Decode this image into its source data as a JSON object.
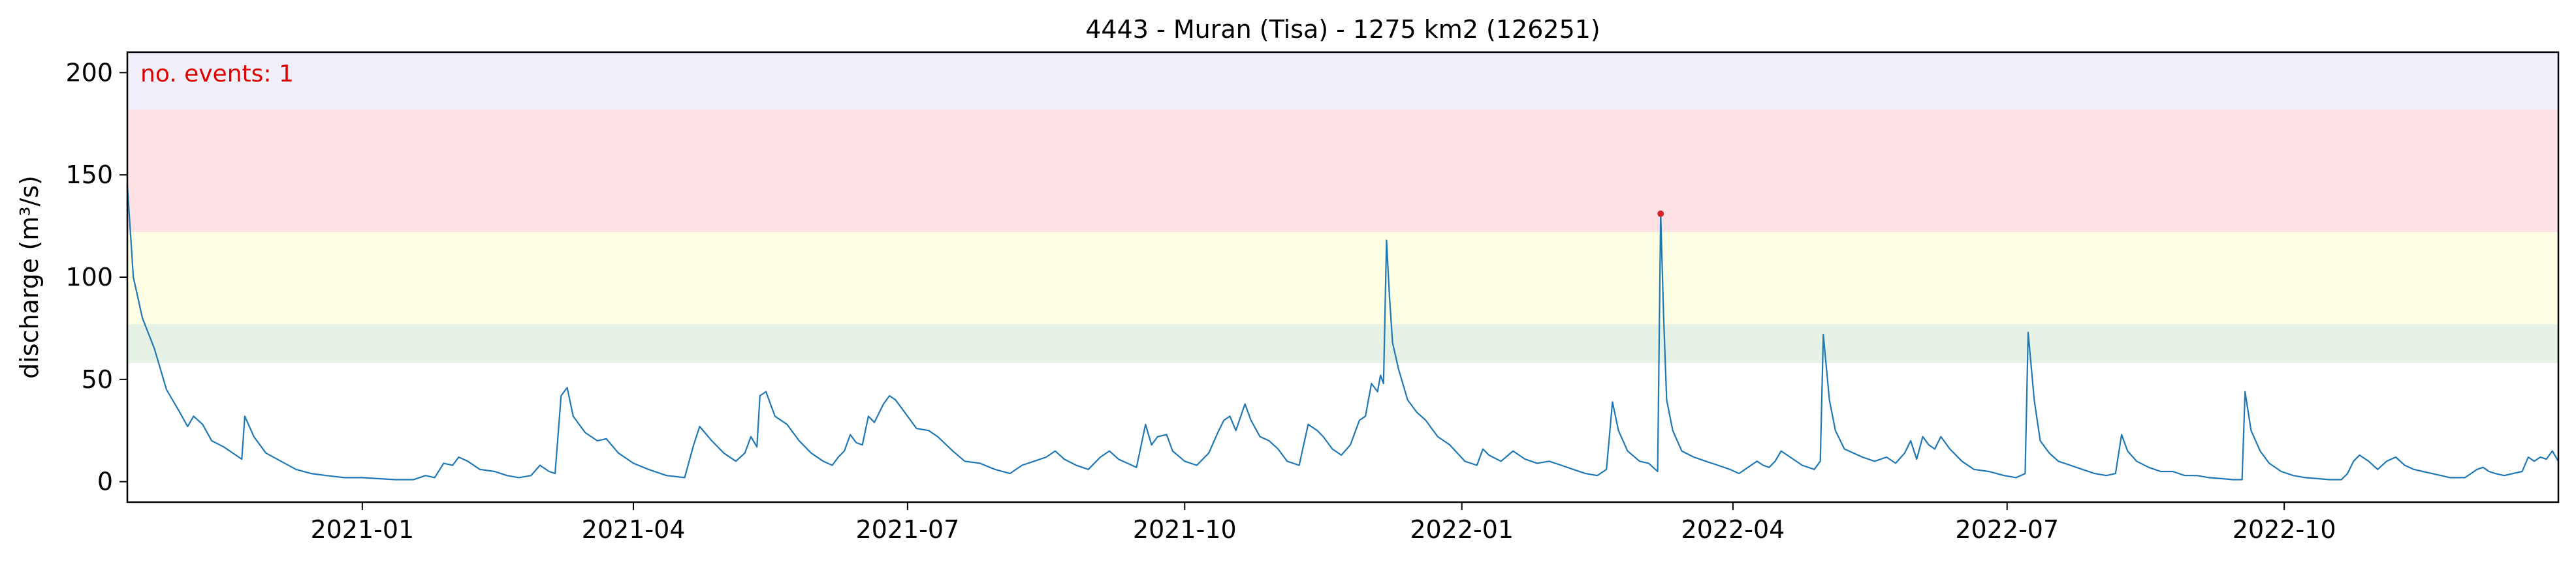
{
  "chart_data": {
    "type": "line",
    "title": "4443 - Muran (Tisa) - 1275 km2 (126251)",
    "xlabel": "",
    "ylabel": "discharge (m³/s)",
    "x_range": [
      "2020-10-15",
      "2022-12-31"
    ],
    "ylim": [
      -10,
      210
    ],
    "y_ticks": [
      0,
      50,
      100,
      150,
      200
    ],
    "x_ticks": [
      {
        "date": "2021-01-01",
        "label": "2021-01"
      },
      {
        "date": "2021-04-01",
        "label": "2021-04"
      },
      {
        "date": "2021-07-01",
        "label": "2021-07"
      },
      {
        "date": "2021-10-01",
        "label": "2021-10"
      },
      {
        "date": "2022-01-01",
        "label": "2022-01"
      },
      {
        "date": "2022-04-01",
        "label": "2022-04"
      },
      {
        "date": "2022-07-01",
        "label": "2022-07"
      },
      {
        "date": "2022-10-01",
        "label": "2022-10"
      }
    ],
    "grid": false,
    "threshold_bands": [
      {
        "from": 58,
        "to": 77,
        "color": "#e5f2e5"
      },
      {
        "from": 77,
        "to": 122,
        "color": "#ffffe5"
      },
      {
        "from": 122,
        "to": 182,
        "color": "#ffe2e5"
      },
      {
        "from": 182,
        "to": 210,
        "color": "#f1f0fa"
      }
    ],
    "series": [
      {
        "color": "#1f77b4",
        "points": [
          [
            "2020-10-15",
            145
          ],
          [
            "2020-10-17",
            100
          ],
          [
            "2020-10-20",
            80
          ],
          [
            "2020-10-24",
            65
          ],
          [
            "2020-10-28",
            45
          ],
          [
            "2020-11-01",
            35
          ],
          [
            "2020-11-04",
            27
          ],
          [
            "2020-11-06",
            32
          ],
          [
            "2020-11-09",
            28
          ],
          [
            "2020-11-12",
            20
          ],
          [
            "2020-11-16",
            17
          ],
          [
            "2020-11-20",
            13
          ],
          [
            "2020-11-22",
            11
          ],
          [
            "2020-11-23",
            32
          ],
          [
            "2020-11-26",
            22
          ],
          [
            "2020-11-30",
            14
          ],
          [
            "2020-12-05",
            10
          ],
          [
            "2020-12-10",
            6
          ],
          [
            "2020-12-15",
            4
          ],
          [
            "2020-12-20",
            3
          ],
          [
            "2020-12-26",
            2
          ],
          [
            "2021-01-01",
            2
          ],
          [
            "2021-01-06",
            1.5
          ],
          [
            "2021-01-12",
            1
          ],
          [
            "2021-01-18",
            1
          ],
          [
            "2021-01-22",
            3
          ],
          [
            "2021-01-25",
            2
          ],
          [
            "2021-01-28",
            9
          ],
          [
            "2021-01-31",
            8
          ],
          [
            "2021-02-02",
            12
          ],
          [
            "2021-02-05",
            10
          ],
          [
            "2021-02-09",
            6
          ],
          [
            "2021-02-14",
            5
          ],
          [
            "2021-02-18",
            3
          ],
          [
            "2021-02-22",
            2
          ],
          [
            "2021-02-26",
            3
          ],
          [
            "2021-03-01",
            8
          ],
          [
            "2021-03-04",
            5
          ],
          [
            "2021-03-06",
            4
          ],
          [
            "2021-03-08",
            42
          ],
          [
            "2021-03-10",
            46
          ],
          [
            "2021-03-12",
            32
          ],
          [
            "2021-03-16",
            24
          ],
          [
            "2021-03-20",
            20
          ],
          [
            "2021-03-23",
            21
          ],
          [
            "2021-03-27",
            14
          ],
          [
            "2021-04-01",
            9
          ],
          [
            "2021-04-06",
            6
          ],
          [
            "2021-04-12",
            3
          ],
          [
            "2021-04-18",
            2
          ],
          [
            "2021-04-21",
            18
          ],
          [
            "2021-04-23",
            27
          ],
          [
            "2021-04-27",
            20
          ],
          [
            "2021-05-01",
            14
          ],
          [
            "2021-05-05",
            10
          ],
          [
            "2021-05-08",
            14
          ],
          [
            "2021-05-10",
            22
          ],
          [
            "2021-05-12",
            17
          ],
          [
            "2021-05-13",
            42
          ],
          [
            "2021-05-15",
            44
          ],
          [
            "2021-05-18",
            32
          ],
          [
            "2021-05-22",
            28
          ],
          [
            "2021-05-26",
            20
          ],
          [
            "2021-05-30",
            14
          ],
          [
            "2021-06-03",
            10
          ],
          [
            "2021-06-06",
            8
          ],
          [
            "2021-06-08",
            12
          ],
          [
            "2021-06-10",
            15
          ],
          [
            "2021-06-12",
            23
          ],
          [
            "2021-06-14",
            19
          ],
          [
            "2021-06-16",
            18
          ],
          [
            "2021-06-18",
            32
          ],
          [
            "2021-06-20",
            29
          ],
          [
            "2021-06-23",
            38
          ],
          [
            "2021-06-25",
            42
          ],
          [
            "2021-06-27",
            40
          ],
          [
            "2021-06-30",
            34
          ],
          [
            "2021-07-04",
            26
          ],
          [
            "2021-07-08",
            25
          ],
          [
            "2021-07-11",
            22
          ],
          [
            "2021-07-16",
            15
          ],
          [
            "2021-07-20",
            10
          ],
          [
            "2021-07-25",
            9
          ],
          [
            "2021-07-30",
            6
          ],
          [
            "2021-08-04",
            4
          ],
          [
            "2021-08-08",
            8
          ],
          [
            "2021-08-12",
            10
          ],
          [
            "2021-08-16",
            12
          ],
          [
            "2021-08-19",
            15
          ],
          [
            "2021-08-22",
            11
          ],
          [
            "2021-08-26",
            8
          ],
          [
            "2021-08-30",
            6
          ],
          [
            "2021-09-03",
            12
          ],
          [
            "2021-09-06",
            15
          ],
          [
            "2021-09-09",
            11
          ],
          [
            "2021-09-12",
            9
          ],
          [
            "2021-09-15",
            7
          ],
          [
            "2021-09-18",
            28
          ],
          [
            "2021-09-20",
            18
          ],
          [
            "2021-09-22",
            22
          ],
          [
            "2021-09-25",
            23
          ],
          [
            "2021-09-27",
            15
          ],
          [
            "2021-10-01",
            10
          ],
          [
            "2021-10-05",
            8
          ],
          [
            "2021-10-09",
            14
          ],
          [
            "2021-10-12",
            24
          ],
          [
            "2021-10-14",
            30
          ],
          [
            "2021-10-16",
            32
          ],
          [
            "2021-10-18",
            25
          ],
          [
            "2021-10-21",
            38
          ],
          [
            "2021-10-23",
            30
          ],
          [
            "2021-10-26",
            22
          ],
          [
            "2021-10-29",
            20
          ],
          [
            "2021-11-01",
            16
          ],
          [
            "2021-11-04",
            10
          ],
          [
            "2021-11-08",
            8
          ],
          [
            "2021-11-11",
            28
          ],
          [
            "2021-11-14",
            25
          ],
          [
            "2021-11-16",
            22
          ],
          [
            "2021-11-19",
            16
          ],
          [
            "2021-11-22",
            13
          ],
          [
            "2021-11-25",
            18
          ],
          [
            "2021-11-28",
            30
          ],
          [
            "2021-11-30",
            32
          ],
          [
            "2021-12-02",
            48
          ],
          [
            "2021-12-04",
            44
          ],
          [
            "2021-12-05",
            52
          ],
          [
            "2021-12-06",
            48
          ],
          [
            "2021-12-07",
            118
          ],
          [
            "2021-12-08",
            90
          ],
          [
            "2021-12-09",
            68
          ],
          [
            "2021-12-11",
            55
          ],
          [
            "2021-12-14",
            40
          ],
          [
            "2021-12-17",
            34
          ],
          [
            "2021-12-20",
            30
          ],
          [
            "2021-12-24",
            22
          ],
          [
            "2021-12-28",
            18
          ],
          [
            "2022-01-02",
            10
          ],
          [
            "2022-01-06",
            8
          ],
          [
            "2022-01-08",
            16
          ],
          [
            "2022-01-10",
            13
          ],
          [
            "2022-01-14",
            10
          ],
          [
            "2022-01-18",
            15
          ],
          [
            "2022-01-22",
            11
          ],
          [
            "2022-01-26",
            9
          ],
          [
            "2022-01-30",
            10
          ],
          [
            "2022-02-03",
            8
          ],
          [
            "2022-02-07",
            6
          ],
          [
            "2022-02-11",
            4
          ],
          [
            "2022-02-15",
            3
          ],
          [
            "2022-02-18",
            6
          ],
          [
            "2022-02-20",
            39
          ],
          [
            "2022-02-22",
            25
          ],
          [
            "2022-02-25",
            15
          ],
          [
            "2022-03-01",
            10
          ],
          [
            "2022-03-04",
            9
          ],
          [
            "2022-03-07",
            5
          ],
          [
            "2022-03-08",
            131
          ],
          [
            "2022-03-09",
            80
          ],
          [
            "2022-03-10",
            40
          ],
          [
            "2022-03-12",
            25
          ],
          [
            "2022-03-15",
            15
          ],
          [
            "2022-03-19",
            12
          ],
          [
            "2022-03-23",
            10
          ],
          [
            "2022-03-27",
            8
          ],
          [
            "2022-03-31",
            6
          ],
          [
            "2022-04-03",
            4
          ],
          [
            "2022-04-07",
            8
          ],
          [
            "2022-04-09",
            10
          ],
          [
            "2022-04-11",
            8
          ],
          [
            "2022-04-13",
            7
          ],
          [
            "2022-04-15",
            10
          ],
          [
            "2022-04-17",
            15
          ],
          [
            "2022-04-19",
            13
          ],
          [
            "2022-04-21",
            11
          ],
          [
            "2022-04-24",
            8
          ],
          [
            "2022-04-28",
            6
          ],
          [
            "2022-04-30",
            10
          ],
          [
            "2022-05-01",
            72
          ],
          [
            "2022-05-03",
            40
          ],
          [
            "2022-05-05",
            25
          ],
          [
            "2022-05-08",
            16
          ],
          [
            "2022-05-11",
            14
          ],
          [
            "2022-05-14",
            12
          ],
          [
            "2022-05-18",
            10
          ],
          [
            "2022-05-22",
            12
          ],
          [
            "2022-05-25",
            9
          ],
          [
            "2022-05-28",
            14
          ],
          [
            "2022-05-30",
            20
          ],
          [
            "2022-06-01",
            11
          ],
          [
            "2022-06-03",
            22
          ],
          [
            "2022-06-05",
            18
          ],
          [
            "2022-06-07",
            16
          ],
          [
            "2022-06-09",
            22
          ],
          [
            "2022-06-12",
            16
          ],
          [
            "2022-06-16",
            10
          ],
          [
            "2022-06-20",
            6
          ],
          [
            "2022-06-25",
            5
          ],
          [
            "2022-06-30",
            3
          ],
          [
            "2022-07-04",
            2
          ],
          [
            "2022-07-07",
            4
          ],
          [
            "2022-07-08",
            73
          ],
          [
            "2022-07-10",
            40
          ],
          [
            "2022-07-12",
            20
          ],
          [
            "2022-07-15",
            14
          ],
          [
            "2022-07-18",
            10
          ],
          [
            "2022-07-22",
            8
          ],
          [
            "2022-07-26",
            6
          ],
          [
            "2022-07-30",
            4
          ],
          [
            "2022-08-03",
            3
          ],
          [
            "2022-08-06",
            4
          ],
          [
            "2022-08-08",
            23
          ],
          [
            "2022-08-10",
            15
          ],
          [
            "2022-08-13",
            10
          ],
          [
            "2022-08-17",
            7
          ],
          [
            "2022-08-21",
            5
          ],
          [
            "2022-08-25",
            5
          ],
          [
            "2022-08-29",
            3
          ],
          [
            "2022-09-02",
            3
          ],
          [
            "2022-09-06",
            2
          ],
          [
            "2022-09-10",
            1.5
          ],
          [
            "2022-09-14",
            1
          ],
          [
            "2022-09-17",
            1
          ],
          [
            "2022-09-18",
            44
          ],
          [
            "2022-09-20",
            25
          ],
          [
            "2022-09-23",
            15
          ],
          [
            "2022-09-26",
            9
          ],
          [
            "2022-09-30",
            5
          ],
          [
            "2022-10-04",
            3
          ],
          [
            "2022-10-08",
            2
          ],
          [
            "2022-10-12",
            1.5
          ],
          [
            "2022-10-16",
            1
          ],
          [
            "2022-10-20",
            1
          ],
          [
            "2022-10-22",
            4
          ],
          [
            "2022-10-24",
            10
          ],
          [
            "2022-10-26",
            13
          ],
          [
            "2022-10-29",
            10
          ],
          [
            "2022-11-01",
            6
          ],
          [
            "2022-11-04",
            10
          ],
          [
            "2022-11-07",
            12
          ],
          [
            "2022-11-10",
            8
          ],
          [
            "2022-11-13",
            6
          ],
          [
            "2022-11-16",
            5
          ],
          [
            "2022-11-19",
            4
          ],
          [
            "2022-11-22",
            3
          ],
          [
            "2022-11-25",
            2
          ],
          [
            "2022-11-28",
            2
          ],
          [
            "2022-11-30",
            2
          ],
          [
            "2022-12-02",
            4
          ],
          [
            "2022-12-04",
            6
          ],
          [
            "2022-12-06",
            7
          ],
          [
            "2022-12-08",
            5
          ],
          [
            "2022-12-10",
            4
          ],
          [
            "2022-12-13",
            3
          ],
          [
            "2022-12-16",
            4
          ],
          [
            "2022-12-19",
            5
          ],
          [
            "2022-12-21",
            12
          ],
          [
            "2022-12-23",
            10
          ],
          [
            "2022-12-25",
            12
          ],
          [
            "2022-12-27",
            11
          ],
          [
            "2022-12-29",
            15
          ],
          [
            "2022-12-31",
            10
          ]
        ]
      }
    ],
    "events": [
      {
        "date": "2022-03-08",
        "value": 131,
        "color": "#d62728"
      }
    ],
    "annotation": {
      "text": "no. events: 1",
      "color": "#dd0000",
      "placement": "top-left"
    }
  }
}
